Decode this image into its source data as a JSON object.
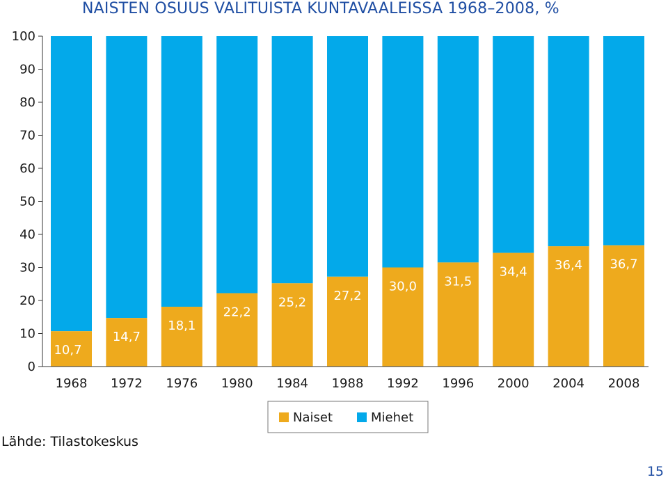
{
  "title": "NAISTEN OSUUS VALITUISTA KUNTAVAALEISSA 1968–2008, %",
  "source": "Lähde: Tilastokeskus",
  "page_number": "15",
  "colors": {
    "naiset": "#eeaa1d",
    "miehet": "#03a9ea",
    "title": "#1f4ea3"
  },
  "chart_data": {
    "type": "bar",
    "stacked": true,
    "categories": [
      "1968",
      "1972",
      "1976",
      "1980",
      "1984",
      "1988",
      "1992",
      "1996",
      "2000",
      "2004",
      "2008"
    ],
    "series": [
      {
        "name": "Naiset",
        "values": [
          10.7,
          14.7,
          18.1,
          22.2,
          25.2,
          27.2,
          30.0,
          31.5,
          34.4,
          36.4,
          36.7
        ]
      },
      {
        "name": "Miehet",
        "values": [
          89.3,
          85.3,
          81.9,
          77.8,
          74.8,
          72.8,
          70.0,
          68.5,
          65.6,
          63.6,
          63.3
        ]
      }
    ],
    "data_labels": [
      "10,7",
      "14,7",
      "18,1",
      "22,2",
      "25,2",
      "27,2",
      "30,0",
      "31,5",
      "34,4",
      "36,4",
      "36,7"
    ],
    "yticks": [
      "0",
      "10",
      "20",
      "30",
      "40",
      "50",
      "60",
      "70",
      "80",
      "90",
      "100"
    ],
    "ylim": [
      0,
      100
    ],
    "legend": {
      "position": "bottom-center",
      "items": [
        "Naiset",
        "Miehet"
      ]
    },
    "grid": false
  }
}
